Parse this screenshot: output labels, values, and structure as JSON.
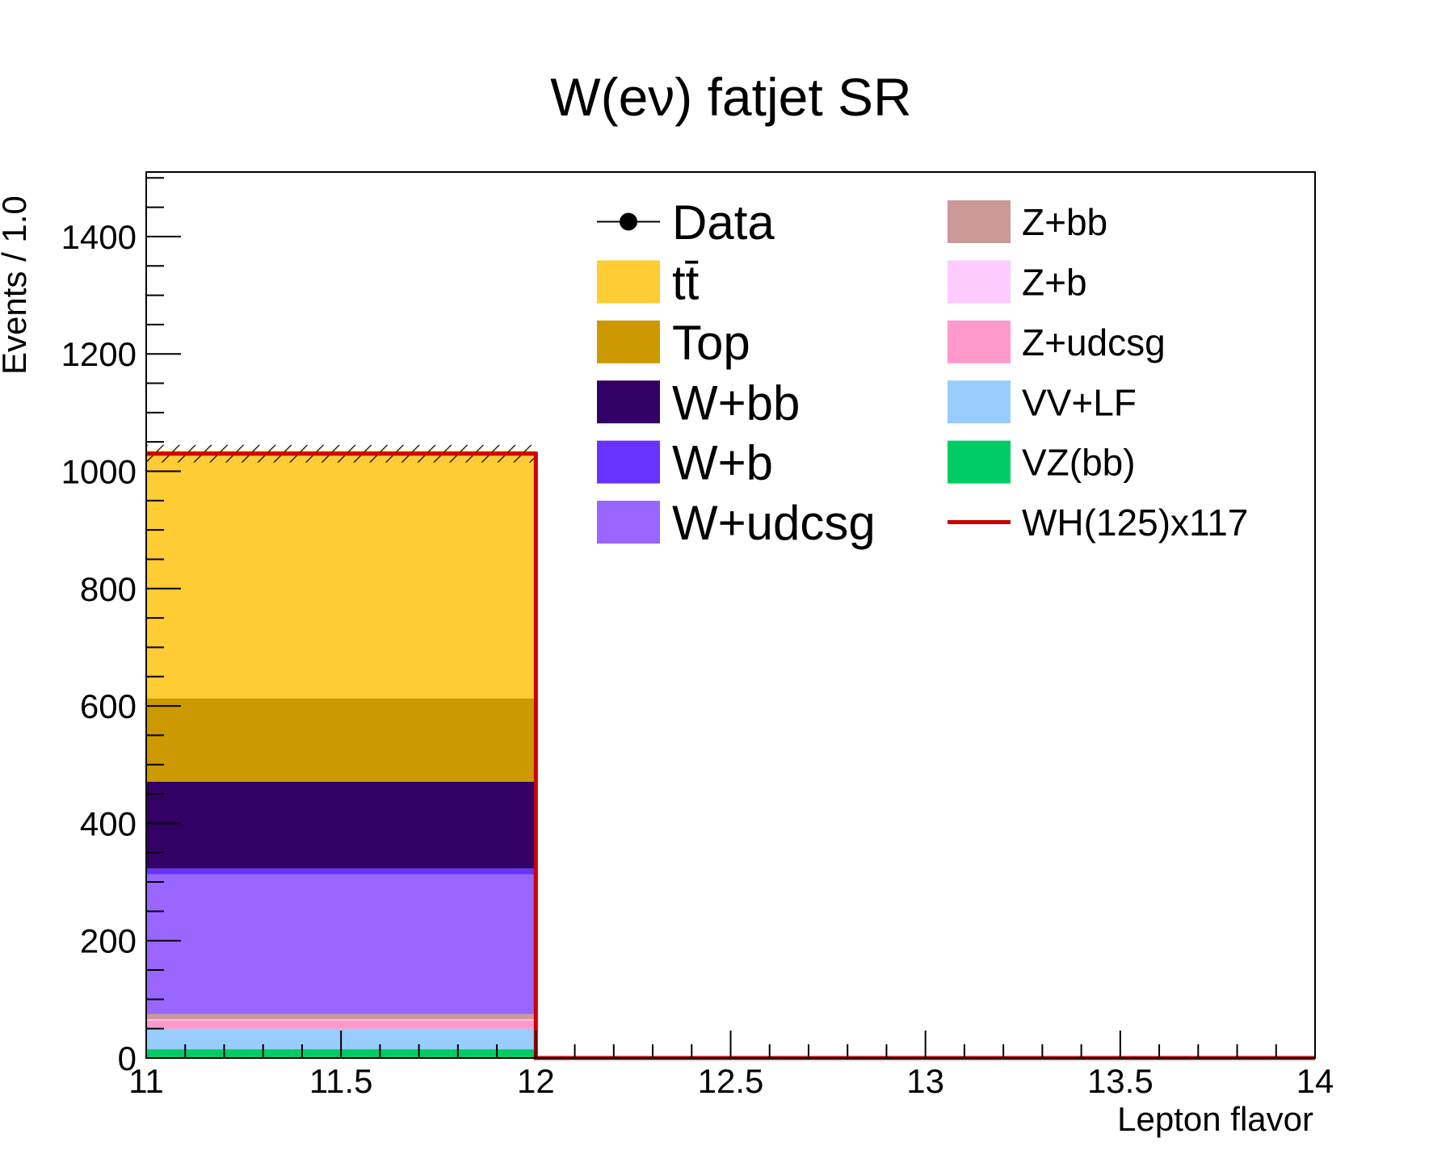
{
  "chart_data": {
    "type": "bar",
    "title": "W(eν) fatjet SR",
    "xlabel": "Lepton flavor",
    "ylabel": "Events / 1.0",
    "xlim": [
      11,
      14
    ],
    "ylim": [
      0,
      1510
    ],
    "x_ticks": [
      "11",
      "11.5",
      "12",
      "12.5",
      "13",
      "13.5",
      "14"
    ],
    "y_ticks": [
      "0",
      "200",
      "400",
      "600",
      "800",
      "1000",
      "1200",
      "1400"
    ],
    "bins": [
      {
        "low": 11,
        "high": 12
      }
    ],
    "stack": [
      {
        "name": "VZ(bb)",
        "color": "#00cc66",
        "values": [
          15
        ]
      },
      {
        "name": "VV+LF",
        "color": "#99ccff",
        "values": [
          35
        ]
      },
      {
        "name": "Z+udcsg",
        "color": "#ff99cc",
        "values": [
          14
        ]
      },
      {
        "name": "Z+b",
        "color": "#ffccff",
        "values": [
          2
        ]
      },
      {
        "name": "Z+bb",
        "color": "#cc9999",
        "values": [
          9
        ]
      },
      {
        "name": "W+udcsg",
        "color": "#9966ff",
        "values": [
          238
        ]
      },
      {
        "name": "W+b",
        "color": "#6633ff",
        "values": [
          10
        ]
      },
      {
        "name": "W+bb",
        "color": "#330066",
        "values": [
          148
        ]
      },
      {
        "name": "Top",
        "color": "#cc9900",
        "values": [
          142
        ]
      },
      {
        "name": "tt̄",
        "color": "#ffcc33",
        "values": [
          422
        ]
      }
    ],
    "uncertainty_band": {
      "low": [
        1015
      ],
      "high": [
        1045
      ]
    },
    "signal": {
      "name": "WH(125)x117",
      "color": "#cc0000",
      "values": [
        1030
      ]
    },
    "data_points": [],
    "legend": {
      "placement": "top-right",
      "left_column": [
        {
          "label": "Data",
          "kind": "marker",
          "color": "#000000"
        },
        {
          "label": "tt̄",
          "kind": "fill",
          "color": "#ffcc33"
        },
        {
          "label": "Top",
          "kind": "fill",
          "color": "#cc9900"
        },
        {
          "label": "W+bb",
          "kind": "fill",
          "color": "#330066"
        },
        {
          "label": "W+b",
          "kind": "fill",
          "color": "#6633ff"
        },
        {
          "label": "W+udcsg",
          "kind": "fill",
          "color": "#9966ff"
        }
      ],
      "right_column": [
        {
          "label": "Z+bb",
          "kind": "fill",
          "color": "#cc9999"
        },
        {
          "label": "Z+b",
          "kind": "fill",
          "color": "#ffccff"
        },
        {
          "label": "Z+udcsg",
          "kind": "fill",
          "color": "#ff99cc"
        },
        {
          "label": "VV+LF",
          "kind": "fill",
          "color": "#99ccff"
        },
        {
          "label": "VZ(bb)",
          "kind": "fill",
          "color": "#00cc66"
        },
        {
          "label": "WH(125)x117",
          "kind": "line",
          "color": "#cc0000"
        }
      ]
    },
    "grid": false
  }
}
